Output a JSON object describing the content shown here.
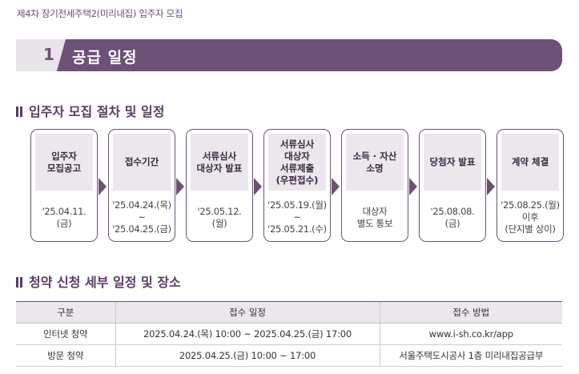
{
  "header": {
    "doc_title": "제4차 장기전세주택2(미리내집) 입주자 모집"
  },
  "section": {
    "number": "1",
    "title": "공급 일정"
  },
  "procedure": {
    "heading": "입주자 모집 절차 및 일정",
    "steps": [
      {
        "title": "입주자\n모집공고",
        "date": "'25.04.11.\n(금)"
      },
      {
        "title": "접수기간",
        "date": "'25.04.24.(목)\n~\n'25.04.25.(금)"
      },
      {
        "title": "서류심사\n대상자 발표",
        "date": "'25.05.12.\n(월)"
      },
      {
        "title": "서류심사\n대상자\n서류제출\n(우편접수)",
        "date": "'25.05.19.(월)\n~\n'25.05.21.(수)"
      },
      {
        "title": "소득 · 자산\n소명",
        "date": "대상자\n별도 통보"
      },
      {
        "title": "당첨자 발표",
        "date": "'25.08.08.\n(금)"
      },
      {
        "title": "계약 체결",
        "date": "'25.08.25.(월)\n이후\n(단지별 상이)"
      }
    ]
  },
  "application": {
    "heading": "청약 신청 세부 일정 및 장소",
    "columns": [
      "구분",
      "접수 일정",
      "접수 방법"
    ],
    "rows": [
      [
        "인터넷 청약",
        "2025.04.24.(목) 10:00 ~ 2025.04.25.(금) 17:00",
        "www.i-sh.co.kr/app"
      ],
      [
        "방문 청약",
        "2025.04.25.(금) 10:00 ~ 17:00",
        "서울주택도시공사 1층 미리내집공급부"
      ]
    ]
  }
}
